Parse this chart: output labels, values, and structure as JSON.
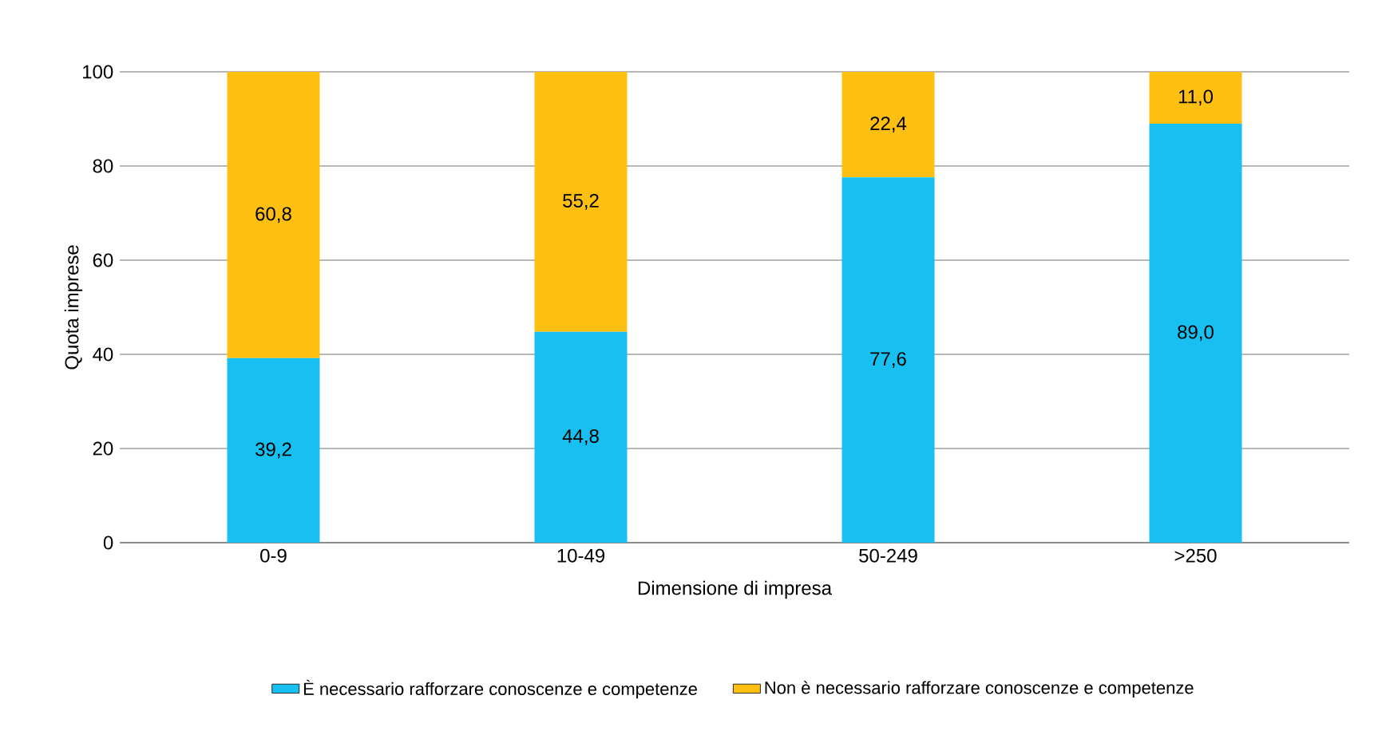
{
  "chart_data": {
    "type": "bar",
    "stacked": true,
    "xlabel": "Dimensione di impresa",
    "ylabel": "Quota imprese",
    "categories": [
      "0-9",
      "10-49",
      "50-249",
      ">250"
    ],
    "series": [
      {
        "name": "È necessario rafforzare conoscenze e competenze",
        "color": "#17c0f0",
        "values": [
          39.2,
          44.8,
          77.6,
          89.0
        ],
        "value_labels": [
          "39,2",
          "44,8",
          "77,6",
          "89,0"
        ]
      },
      {
        "name": "Non è necessario rafforzare conoscenze e competenze",
        "color": "#fdbf12",
        "values": [
          60.8,
          55.2,
          22.4,
          11.0
        ],
        "value_labels": [
          "60,8",
          "55,2",
          "22,4",
          "11,0"
        ]
      }
    ],
    "ylim": [
      0,
      100
    ],
    "yticks": [
      0,
      20,
      40,
      60,
      80,
      100
    ],
    "grid": "y",
    "legend": "bottom"
  }
}
